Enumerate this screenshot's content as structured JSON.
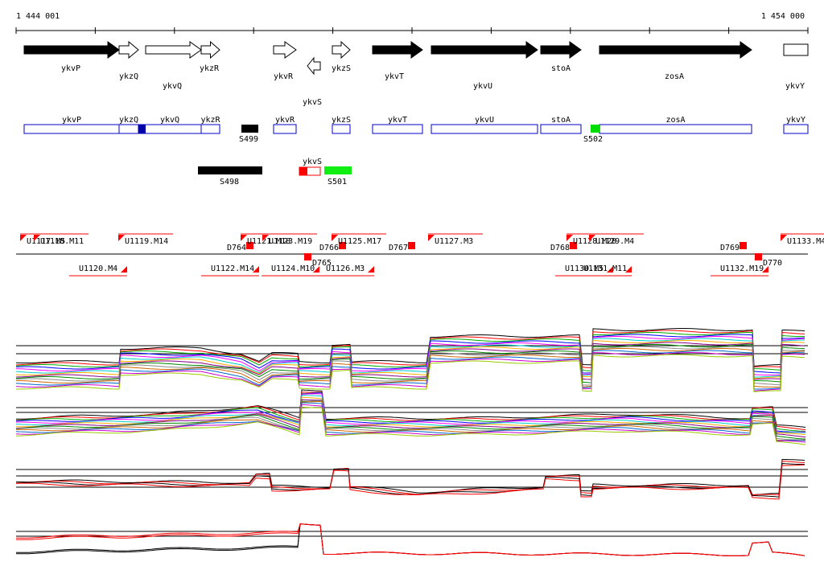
{
  "ruler": {
    "start": "1 444 001",
    "end": "1 454 000"
  },
  "genes": [
    "ykvP",
    "ykzQ",
    "ykvQ",
    "ykzR",
    "ykvR",
    "ykvS",
    "ykzS",
    "ykvT",
    "ykvU",
    "stoA",
    "zosA",
    "ykvY"
  ],
  "gene_boxes": [
    "ykvP",
    "ykzQ",
    "ykvQ",
    "ykzR",
    "ykvR",
    "ykzS",
    "ykvT",
    "ykvU",
    "stoA",
    "zosA",
    "ykvY"
  ],
  "features": [
    "S499",
    "S502",
    "ykvS",
    "S498",
    "S501"
  ],
  "transcripts_upper": [
    "U1117.M5",
    "U1118.M11",
    "U1119.M14",
    "D764",
    "U1121.M18",
    "U1123.M19",
    "D766",
    "U1125.M17",
    "D767",
    "U1127.M3",
    "D768",
    "U1128.M20",
    "U1129.M4",
    "D769",
    "U1133.M4"
  ],
  "transcripts_lower": [
    "U1120.M4",
    "U1122.M14",
    "U1124.M10",
    "D765",
    "U1126.M3",
    "U1130.M5",
    "U1131.M11",
    "U1132.M19",
    "D770"
  ]
}
